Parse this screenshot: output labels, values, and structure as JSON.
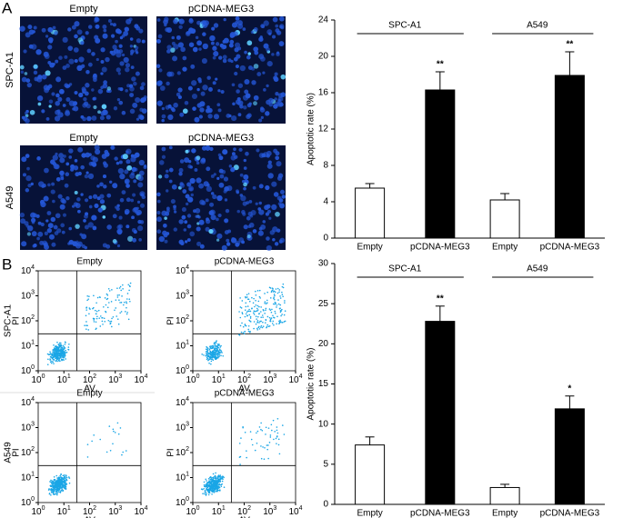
{
  "panels": {
    "a": "A",
    "b": "B"
  },
  "microscopy": {
    "rows": [
      {
        "label": "SPC-A1",
        "titles": [
          "Empty",
          "pCDNA-MEG3"
        ]
      },
      {
        "label": "A549",
        "titles": [
          "Empty",
          "pCDNA-MEG3"
        ]
      }
    ]
  },
  "flow": {
    "rows": [
      {
        "label": "SPC-A1",
        "titles": [
          "Empty",
          "pCDNA-MEG3"
        ]
      },
      {
        "label": "A549",
        "titles": [
          "Empty",
          "pCDNA-MEG3"
        ]
      }
    ],
    "x_label": "AV",
    "y_label": "PI",
    "tick_labels": [
      {
        "base": "10",
        "exponent": "0"
      },
      {
        "base": "10",
        "exponent": "1"
      },
      {
        "base": "10",
        "exponent": "2"
      },
      {
        "base": "10",
        "exponent": "3"
      },
      {
        "base": "10",
        "exponent": "4"
      }
    ]
  },
  "chart_data": [
    {
      "type": "bar",
      "ylabel": "Apoptotic rate (%)",
      "categories": [
        "Empty",
        "pCDNA-MEG3",
        "Empty",
        "pCDNA-MEG3"
      ],
      "groups": [
        "SPC-A1",
        "A549"
      ],
      "values": [
        5.5,
        16.3,
        4.2,
        17.9
      ],
      "errors": [
        0.5,
        2.0,
        0.7,
        2.6
      ],
      "significance": [
        null,
        "**",
        null,
        "**"
      ],
      "colors": [
        "#ffffff",
        "#000000",
        "#ffffff",
        "#000000"
      ],
      "ylim": [
        0,
        24
      ],
      "yticks": [
        0,
        4,
        8,
        12,
        16,
        20,
        24
      ]
    },
    {
      "type": "bar",
      "ylabel": "Apoptotic rate (%)",
      "categories": [
        "Empty",
        "pCDNA-MEG3",
        "Empty",
        "pCDNA-MEG3"
      ],
      "groups": [
        "SPC-A1",
        "A549"
      ],
      "values": [
        7.4,
        22.8,
        2.1,
        11.9
      ],
      "errors": [
        1.0,
        1.9,
        0.4,
        1.6
      ],
      "significance": [
        null,
        "**",
        null,
        "*"
      ],
      "colors": [
        "#ffffff",
        "#000000",
        "#ffffff",
        "#000000"
      ],
      "ylim": [
        0,
        30
      ],
      "yticks": [
        0,
        5,
        10,
        15,
        20,
        25,
        30
      ]
    }
  ]
}
